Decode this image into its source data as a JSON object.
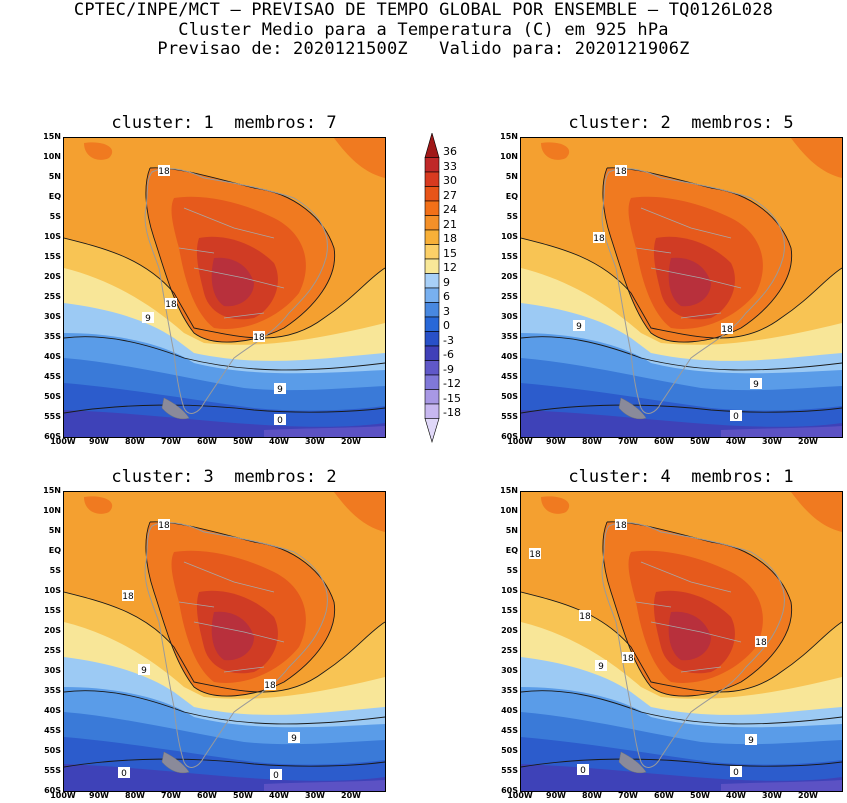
{
  "header": {
    "line1": "CPTEC/INPE/MCT – PREVISAO DE TEMPO GLOBAL POR ENSEMBLE – TQ0126L028",
    "line2": "Cluster Medio para a Temperatura (C) em 925 hPa",
    "line3": "Previsao de: 2020121500Z   Valido para: 2020121906Z"
  },
  "panels": [
    {
      "title": "cluster: 1  membros: 7",
      "labels": {
        "a": "18",
        "b": "18",
        "c": "18",
        "d": "9",
        "e": "9",
        "f": "0"
      }
    },
    {
      "title": "cluster: 2  membros: 5",
      "labels": {
        "a": "18",
        "b": "18",
        "c": "18",
        "d": "9",
        "e": "9",
        "f": "0"
      }
    },
    {
      "title": "cluster: 3  membros: 2",
      "labels": {
        "a": "18",
        "b": "18",
        "c": "18",
        "d": "9",
        "e": "9",
        "f": "0",
        "g": "0"
      }
    },
    {
      "title": "cluster: 4  membros: 1",
      "labels": {
        "a": "18",
        "b": "18",
        "c": "18",
        "d": "18",
        "e": "18",
        "f": "9",
        "g": "9",
        "h": "0",
        "i": "0"
      }
    }
  ],
  "axes": {
    "lat": [
      "15N",
      "10N",
      "5N",
      "EQ",
      "5S",
      "10S",
      "15S",
      "20S",
      "25S",
      "30S",
      "35S",
      "40S",
      "45S",
      "50S",
      "55S",
      "60S"
    ],
    "lon": [
      "100W",
      "90W",
      "80W",
      "70W",
      "60W",
      "50W",
      "40W",
      "30W",
      "20W"
    ]
  },
  "colorbar": {
    "labels": [
      "36",
      "33",
      "30",
      "27",
      "24",
      "21",
      "18",
      "15",
      "12",
      "9",
      "6",
      "3",
      "0",
      "-3",
      "-6",
      "-9",
      "-12",
      "-15",
      "-18"
    ],
    "colors": [
      "#a01818",
      "#c02828",
      "#d83a20",
      "#e85418",
      "#f27018",
      "#f49028",
      "#f8b038",
      "#fcd068",
      "#f8e898",
      "#a8d0f8",
      "#78b0f0",
      "#4888e0",
      "#2868d8",
      "#2850c8",
      "#4040b8",
      "#6058c8",
      "#8078d8",
      "#a898e4",
      "#c8b8f0",
      "#e0d8f8"
    ]
  },
  "colors": {
    "warm1": "#f8c454",
    "warm2": "#f4a030",
    "warm3": "#f07a20",
    "warm4": "#e65a1c",
    "warm5": "#d03c24",
    "warm6": "#b8303c",
    "cool1": "#f8e698",
    "cool2": "#9ccaf4",
    "cool3": "#5a9ce8",
    "cool4": "#3a7ad8",
    "cool5": "#2c5ccc",
    "cool6": "#3e42b8",
    "cool7": "#5c52c4"
  }
}
